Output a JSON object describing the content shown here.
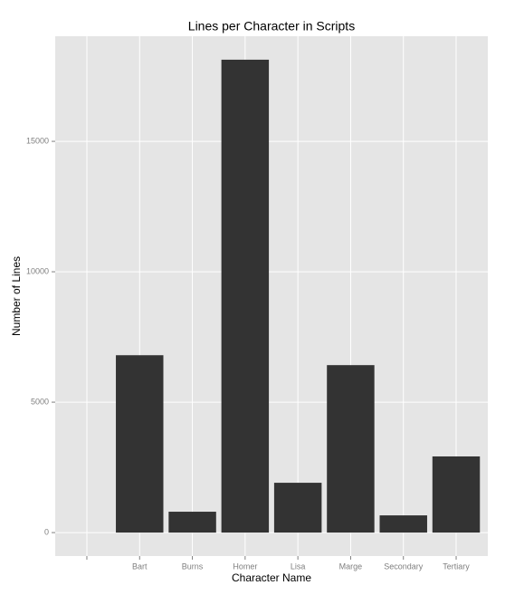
{
  "chart_data": {
    "type": "bar",
    "title": "Lines per Character in Scripts",
    "x_label": "Character Name",
    "y_label": "Number of Lines",
    "categories": [
      null,
      "Bart",
      "Burns",
      "Homer",
      "Lisa",
      "Marge",
      "Secondary",
      "Tertiary"
    ],
    "values": [
      0,
      6800,
      800,
      18130,
      1910,
      6420,
      660,
      2920
    ],
    "color": "#333333",
    "ylim": [
      -900,
      19030
    ],
    "yticks": [
      0,
      5000,
      10000,
      15000
    ],
    "grid": true
  }
}
